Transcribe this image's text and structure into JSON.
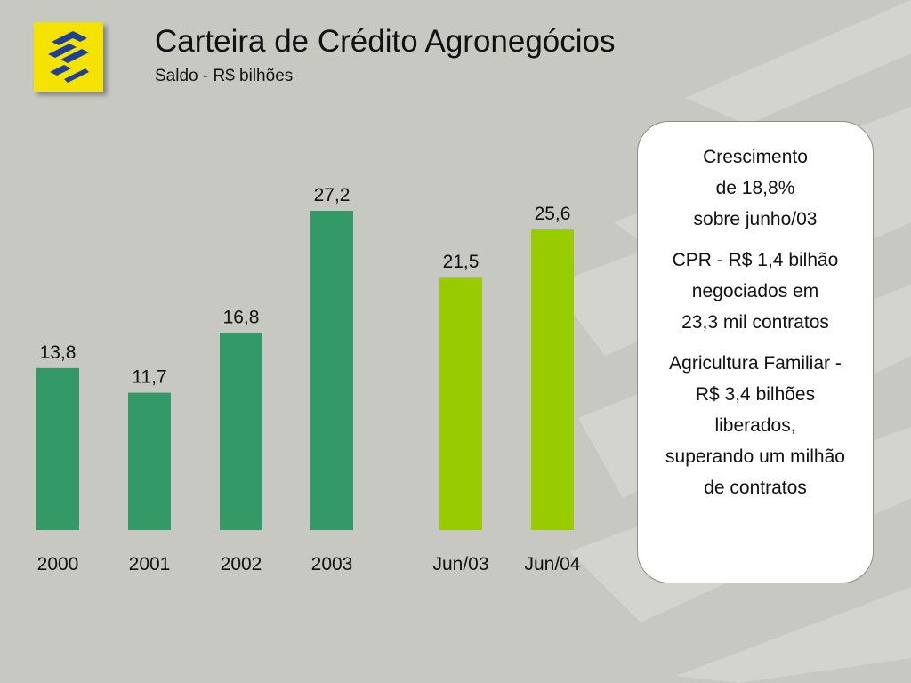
{
  "header": {
    "title": "Carteira de Crédito Agronegócios",
    "subtitle": "Saldo - R$ bilhões",
    "logo_name": "banco-do-brasil-logo"
  },
  "colors": {
    "background": "#c7c8c2",
    "pattern": "#d4d5cf",
    "annual_bar": "#339966",
    "semester_bar": "#99cc00",
    "logo_yellow": "#f4e300",
    "logo_blue": "#1f3f9a"
  },
  "chart_data": {
    "type": "bar",
    "categories": [
      "2000",
      "2001",
      "2002",
      "2003",
      "Jun/03",
      "Jun/04"
    ],
    "values": [
      13.8,
      11.7,
      16.8,
      27.2,
      21.5,
      25.6
    ],
    "value_labels": [
      "13,8",
      "11,7",
      "16,8",
      "27,2",
      "21,5",
      "25,6"
    ],
    "bar_colors": [
      "#339966",
      "#339966",
      "#339966",
      "#339966",
      "#99cc00",
      "#99cc00"
    ],
    "title": "Carteira de Crédito Agronegócios",
    "subtitle": "Saldo - R$ bilhões",
    "xlabel": "",
    "ylabel": "",
    "ylim": [
      0,
      27.2
    ],
    "grid": false,
    "legend": "none"
  },
  "info_panel": {
    "blocks": [
      [
        "Crescimento",
        "de  18,8%",
        "sobre junho/03"
      ],
      [
        "CPR - R$ 1,4 bilhão",
        "negociados em",
        "23,3 mil contratos"
      ],
      [
        "Agricultura Familiar -",
        "R$ 3,4 bilhões",
        "liberados,",
        "superando um milhão",
        "de contratos"
      ]
    ]
  }
}
